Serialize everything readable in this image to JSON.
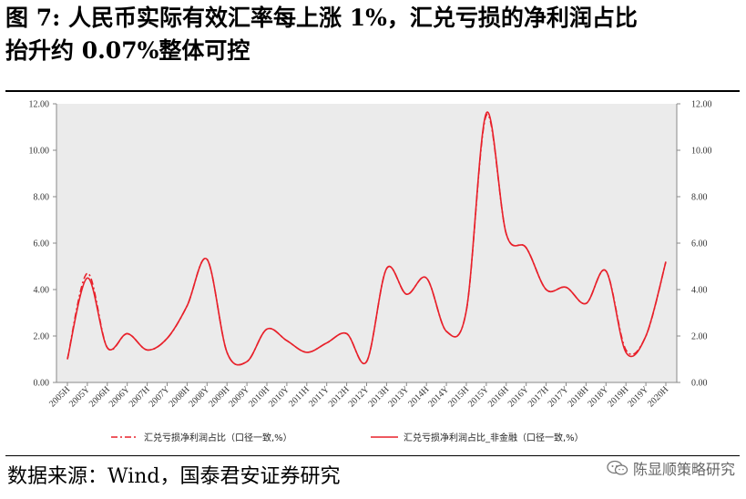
{
  "title": {
    "line1": "图 7: 人民币实际有效汇率每上涨 1%，汇兑亏损的净利润占比",
    "line2": "抬升约 0.07%整体可控"
  },
  "source": "数据来源：Wind，国泰君安证券研究",
  "watermark": {
    "text": "陈显顺策略研究",
    "icon": "wechat-icon"
  },
  "chart_data": {
    "type": "line",
    "categories": [
      "2005H",
      "2005Y",
      "2006H",
      "2006Y",
      "2007H",
      "2007Y",
      "2008H",
      "2008Y",
      "2009H",
      "2009Y",
      "2010H",
      "2010Y",
      "2011H",
      "2011Y",
      "2012H",
      "2012Y",
      "2013H",
      "2013Y",
      "2014H",
      "2014Y",
      "2015H",
      "2015Y",
      "2016H",
      "2016Y",
      "2017H",
      "2017Y",
      "2018H",
      "2018Y",
      "2019H",
      "2019Y",
      "2020H"
    ],
    "ylim": [
      0,
      12
    ],
    "yticks": [
      "0.00",
      "2.00",
      "4.00",
      "6.00",
      "8.00",
      "10.00",
      "12.00"
    ],
    "secondary_yticks": [
      "0.00",
      "2.00",
      "4.00",
      "6.00",
      "8.00",
      "10.00",
      "12.00"
    ],
    "grid": false,
    "legend_position": "bottom",
    "series": [
      {
        "name": "汇兑亏损净利润占比（口径一致,%）",
        "style": "dash-dot",
        "color": "#e8202a",
        "values": [
          1.0,
          4.7,
          1.5,
          2.1,
          1.4,
          1.9,
          3.3,
          5.3,
          1.3,
          0.9,
          2.3,
          1.8,
          1.3,
          1.7,
          2.1,
          0.9,
          4.9,
          3.8,
          4.5,
          2.2,
          3.1,
          11.5,
          6.4,
          5.8,
          4.0,
          4.1,
          3.4,
          4.8,
          1.4,
          2.0,
          5.2
        ]
      },
      {
        "name": "汇兑亏损净利润占比_非金融（口径一致,%）",
        "style": "solid",
        "color": "#e8202a",
        "values": [
          1.0,
          4.5,
          1.5,
          2.1,
          1.4,
          1.9,
          3.3,
          5.3,
          1.3,
          0.9,
          2.3,
          1.8,
          1.3,
          1.7,
          2.1,
          0.9,
          4.9,
          3.8,
          4.5,
          2.2,
          3.1,
          11.6,
          6.4,
          5.8,
          4.0,
          4.1,
          3.4,
          4.8,
          1.3,
          2.0,
          5.2
        ]
      }
    ]
  }
}
